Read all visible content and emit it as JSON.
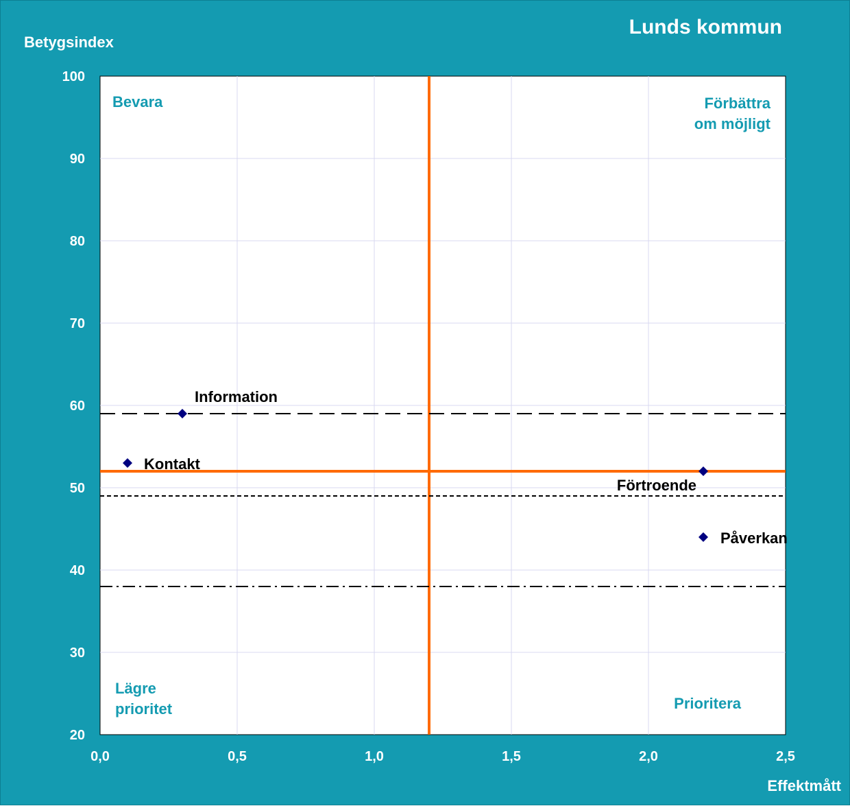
{
  "chart_data": {
    "type": "scatter",
    "title": "Lunds kommun",
    "xlabel": "Effektmått",
    "ylabel": "Betygsindex",
    "xlim": [
      0,
      2.5
    ],
    "ylim": [
      20,
      100
    ],
    "x_ticks": [
      "0,0",
      "0,5",
      "1,0",
      "1,5",
      "2,0",
      "2,5"
    ],
    "y_ticks": [
      "20",
      "30",
      "40",
      "50",
      "60",
      "70",
      "80",
      "90",
      "100"
    ],
    "grid": true,
    "points": [
      {
        "label": "Information",
        "x": 0.3,
        "y": 59
      },
      {
        "label": "Kontakt",
        "x": 0.1,
        "y": 53
      },
      {
        "label": "Förtroende",
        "x": 2.2,
        "y": 52
      },
      {
        "label": "Påverkan",
        "x": 2.2,
        "y": 44
      }
    ],
    "reference_lines": [
      {
        "orientation": "vertical",
        "value": 1.2,
        "style": "solid",
        "color": "#ff6a00"
      },
      {
        "orientation": "horizontal",
        "value": 52,
        "style": "solid",
        "color": "#ff6a00"
      },
      {
        "orientation": "horizontal",
        "value": 59,
        "style": "long-dash",
        "color": "#000000"
      },
      {
        "orientation": "horizontal",
        "value": 49,
        "style": "short-dash",
        "color": "#000000"
      },
      {
        "orientation": "horizontal",
        "value": 38,
        "style": "dash-dot",
        "color": "#000000"
      }
    ],
    "quadrant_labels": {
      "top_left": [
        "Bevara"
      ],
      "top_right": [
        "Förbättra",
        "om möjligt"
      ],
      "bottom_left": [
        "Lägre",
        "prioritet"
      ],
      "bottom_right": [
        "Prioritera"
      ]
    },
    "colors": {
      "background": "#149bb1",
      "plot_area": "#ffffff",
      "grid": "#d8d8f0",
      "marker": "#000080",
      "reference": "#ff6a00",
      "quadrant_text": "#149bb1"
    }
  }
}
